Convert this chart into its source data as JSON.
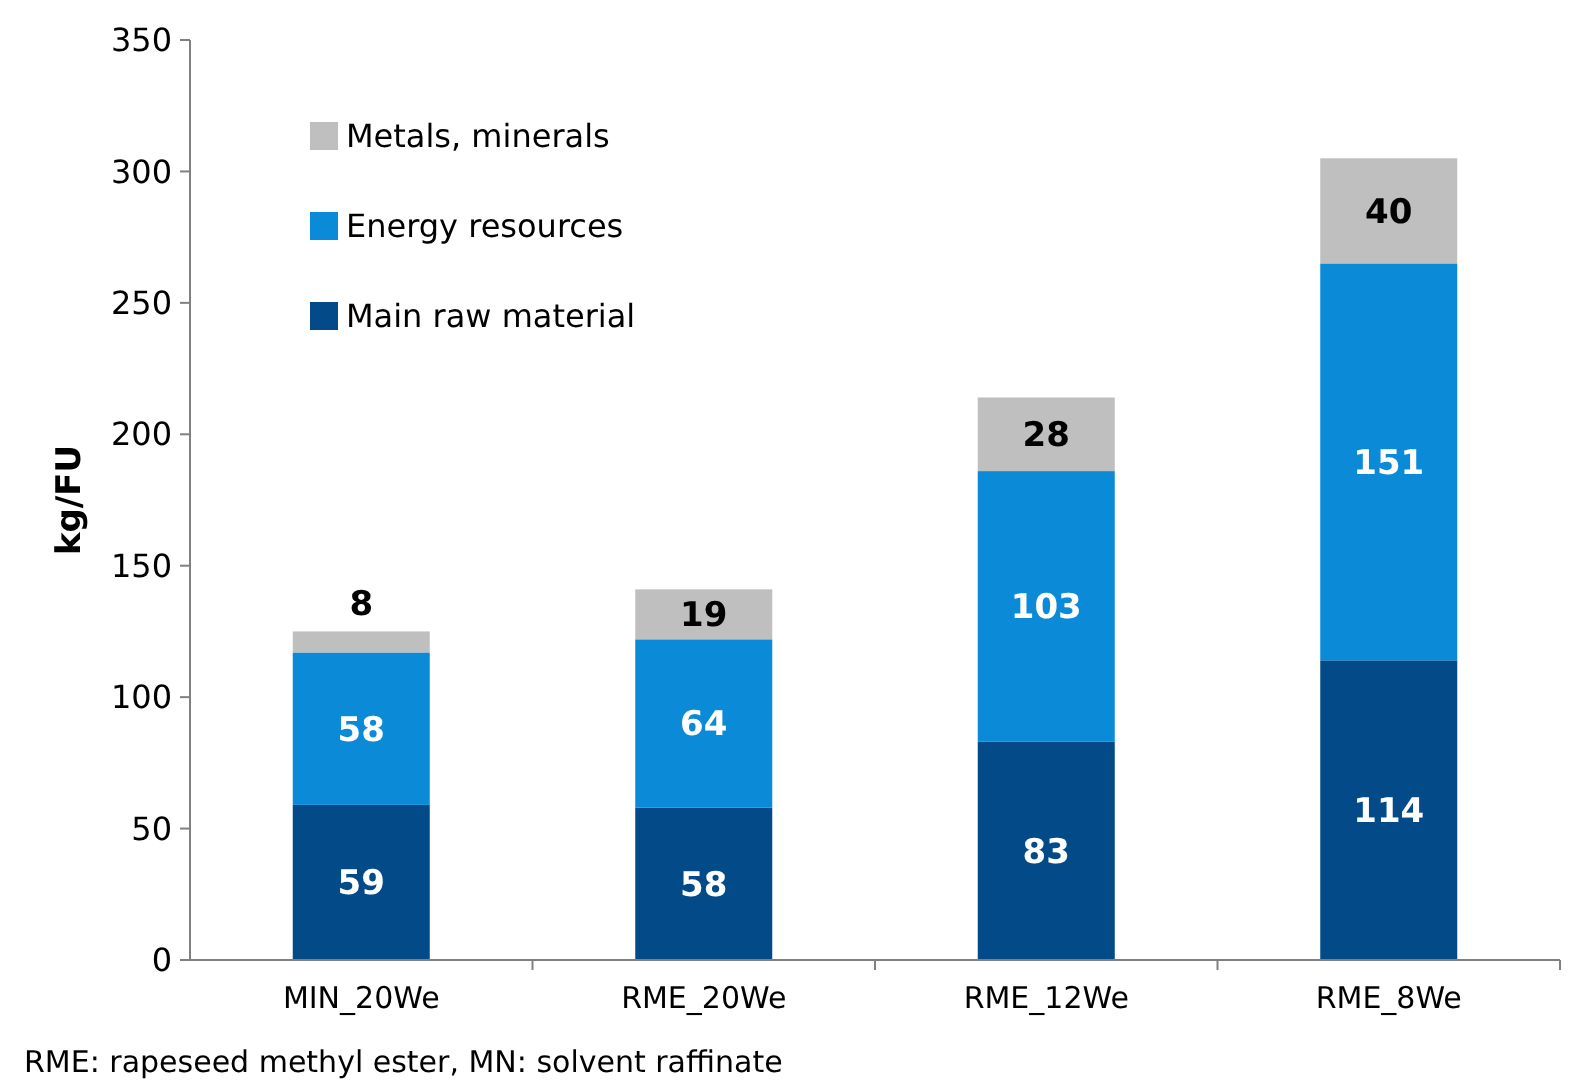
{
  "chart_data": {
    "type": "bar",
    "stacked": true,
    "ylabel": "kg/FU",
    "categories": [
      "MIN_20We",
      "RME_20We",
      "RME_12We",
      "RME_8We"
    ],
    "series": [
      {
        "name": "Main raw material",
        "color": "#034b88",
        "values": [
          59,
          58,
          83,
          114
        ]
      },
      {
        "name": "Energy resources",
        "color": "#0b8ad8",
        "values": [
          58,
          64,
          103,
          151
        ]
      },
      {
        "name": "Metals, minerals",
        "color": "#bfbfbf",
        "values": [
          8,
          19,
          28,
          40
        ]
      }
    ],
    "ylim": [
      0,
      350
    ],
    "yticks": [
      0,
      50,
      100,
      150,
      200,
      250,
      300,
      350
    ],
    "data_labels": true,
    "grid": false,
    "legend": "top left",
    "annotations": [
      "RME: rapeseed methyl ester, MN: solvent raffinate"
    ]
  }
}
